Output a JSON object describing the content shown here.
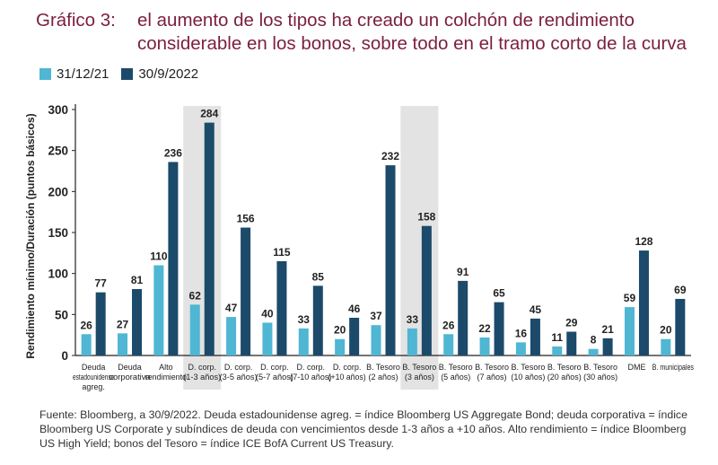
{
  "colors": {
    "s1": "#4fb6d3",
    "s2": "#1c4a6a",
    "highlight": "#e3e3e3",
    "title": "#7a1f3d"
  },
  "title": {
    "label": "Gráfico 3:",
    "line1": "el aumento de los tipos ha creado un colchón de rendimiento",
    "line2": "considerable en los bonos, sobre todo en el tramo corto de la curva"
  },
  "source": "Fuente: Bloomberg, a 30/9/2022. Deuda estadounidense agreg. = índice Bloomberg US Aggregate Bond; deuda corporativa = índice Bloomberg US Corporate y subíndices de deuda con vencimientos desde 1-3 años a +10 años. Alto rendimiento = índice Bloomberg US High Yield; bonos del Tesoro = índice ICE BofA Current US Treasury.",
  "chart_data": {
    "type": "bar",
    "ylabel": "Rendimiento mínimo/Duración (puntos básicos)",
    "ylim": [
      0,
      300
    ],
    "yticks": [
      0,
      50,
      100,
      150,
      200,
      250,
      300
    ],
    "legend_position": "top-left",
    "highlighted_categories": [
      3,
      9
    ],
    "categories": [
      [
        "Deuda",
        "estadounidense",
        "agreg."
      ],
      [
        "Deuda",
        "corporativa"
      ],
      [
        "Alto",
        "rendimiento"
      ],
      [
        "D. corp.",
        "(1-3 años)"
      ],
      [
        "D. corp.",
        "(3-5 años)"
      ],
      [
        "D. corp.",
        "(5-7 años)"
      ],
      [
        "D. corp.",
        "(7-10 años)"
      ],
      [
        "D. corp.",
        "(+10 años)"
      ],
      [
        "B. Tesoro",
        "(2 años)"
      ],
      [
        "B. Tesoro",
        "(3 años)"
      ],
      [
        "B. Tesoro",
        "(5 años)"
      ],
      [
        "B. Tesoro",
        "(7 años)"
      ],
      [
        "B. Tesoro",
        "(10 años)"
      ],
      [
        "B. Tesoro",
        "(20 años)"
      ],
      [
        "B. Tesoro",
        "(30 años)"
      ],
      [
        "DME"
      ],
      [
        "B. municipales"
      ]
    ],
    "series": [
      {
        "name": "31/12/21",
        "values": [
          26,
          27,
          110,
          62,
          47,
          40,
          33,
          20,
          37,
          33,
          26,
          22,
          16,
          11,
          8,
          59,
          20
        ]
      },
      {
        "name": "30/9/2022",
        "values": [
          77,
          81,
          236,
          284,
          156,
          115,
          85,
          46,
          232,
          158,
          91,
          65,
          45,
          29,
          21,
          128,
          69
        ]
      }
    ]
  }
}
